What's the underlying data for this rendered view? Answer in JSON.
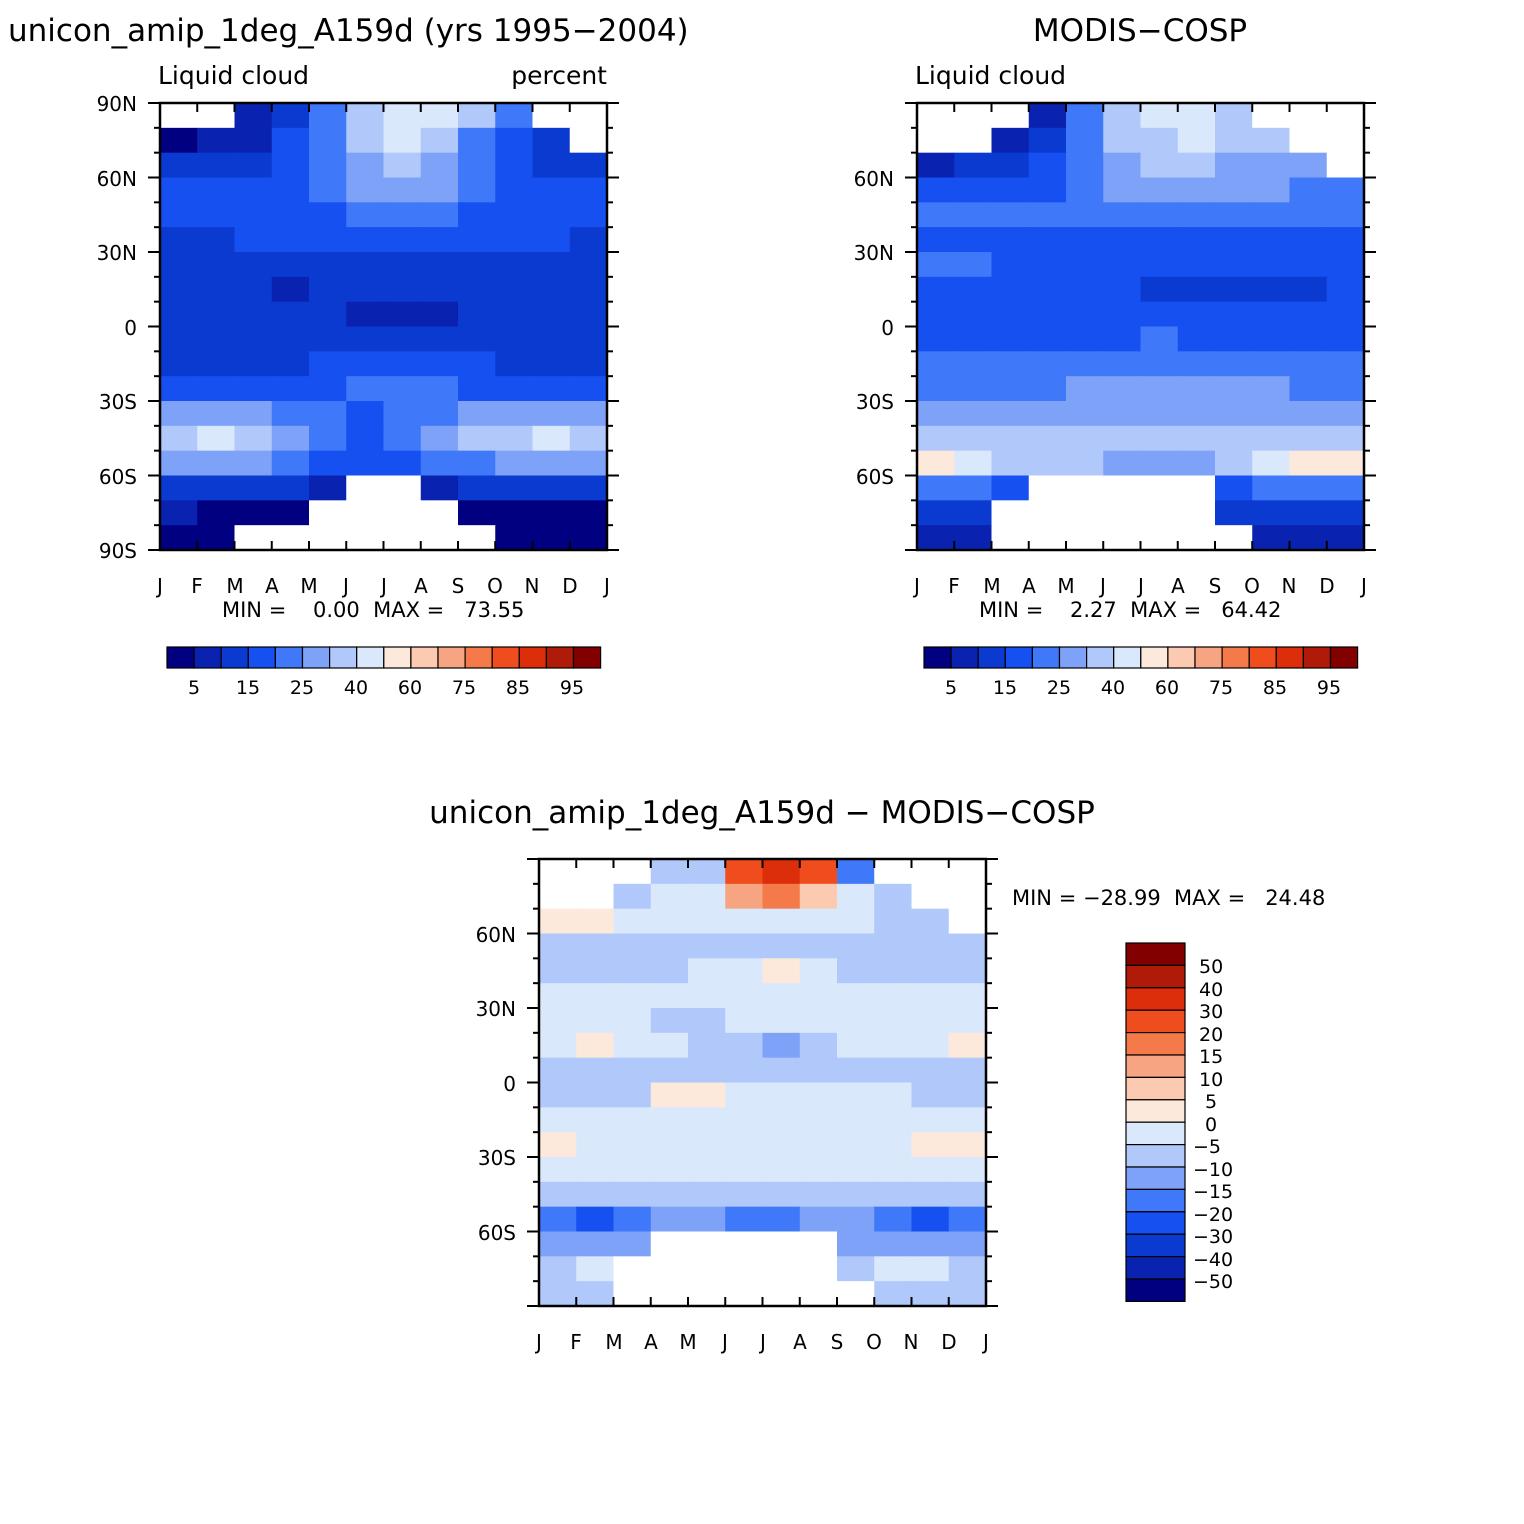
{
  "figure": {
    "palette": [
      "#000080",
      "#0a22b0",
      "#0a3ad0",
      "#1650f0",
      "#3f78f8",
      "#7ea2f8",
      "#b0c8fa",
      "#dae8fc",
      "#fde8dc",
      "#fccab0",
      "#f7a482",
      "#f57a4a",
      "#f04d1e",
      "#dc2e0a",
      "#b01a08",
      "#820000"
    ],
    "months": [
      "J",
      "F",
      "M",
      "A",
      "M",
      "J",
      "J",
      "A",
      "S",
      "O",
      "N",
      "D",
      "J"
    ],
    "lat_ticks": [
      "90N",
      "60N",
      "30N",
      "0",
      "30S",
      "60S",
      "90S"
    ],
    "seasonal_lat_ticks": [
      "60N",
      "30N",
      "0",
      "30S",
      "60S"
    ],
    "top_colorbar_labels": [
      "5",
      "15",
      "25",
      "40",
      "60",
      "75",
      "85",
      "95"
    ],
    "diff_colorbar_labels": [
      "50",
      "40",
      "30",
      "20",
      "15",
      "10",
      "5",
      "0",
      "−5",
      "−10",
      "−15",
      "−20",
      "−30",
      "−40",
      "−50"
    ]
  },
  "chart_data": [
    {
      "type": "heatmap",
      "title": "unicon_amip_1deg_A159d (yrs 1995−2004)",
      "subtitle_left": "Liquid cloud",
      "subtitle_right": "percent",
      "stats": "MIN =    0.00  MAX =   73.55",
      "min": 0.0,
      "max": 73.55,
      "x": [
        "J",
        "F",
        "M",
        "A",
        "M",
        "J",
        "J",
        "A",
        "S",
        "O",
        "N",
        "D"
      ],
      "y_latitude": [
        85,
        75,
        65,
        55,
        45,
        35,
        25,
        15,
        5,
        -5,
        -15,
        -25,
        -35,
        -45,
        -55,
        -65,
        -75,
        -85
      ],
      "values_level_index": [
        [
          -1,
          -1,
          1,
          2,
          4,
          6,
          7,
          7,
          6,
          4,
          -1,
          -1
        ],
        [
          0,
          1,
          1,
          3,
          4,
          6,
          7,
          6,
          4,
          3,
          2,
          -1
        ],
        [
          2,
          2,
          2,
          3,
          4,
          5,
          6,
          5,
          4,
          3,
          2,
          2
        ],
        [
          3,
          3,
          3,
          3,
          4,
          5,
          5,
          5,
          4,
          3,
          3,
          3
        ],
        [
          3,
          3,
          3,
          3,
          3,
          4,
          4,
          4,
          3,
          3,
          3,
          3
        ],
        [
          2,
          2,
          3,
          3,
          3,
          3,
          3,
          3,
          3,
          3,
          3,
          2
        ],
        [
          2,
          2,
          2,
          2,
          2,
          2,
          2,
          2,
          2,
          2,
          2,
          2
        ],
        [
          2,
          2,
          2,
          1,
          2,
          2,
          2,
          2,
          2,
          2,
          2,
          2
        ],
        [
          2,
          2,
          2,
          2,
          2,
          1,
          1,
          1,
          2,
          2,
          2,
          2
        ],
        [
          2,
          2,
          2,
          2,
          2,
          2,
          2,
          2,
          2,
          2,
          2,
          2
        ],
        [
          2,
          2,
          2,
          2,
          3,
          3,
          3,
          3,
          3,
          2,
          2,
          2
        ],
        [
          3,
          3,
          3,
          3,
          3,
          4,
          4,
          4,
          3,
          3,
          3,
          3
        ],
        [
          5,
          5,
          5,
          4,
          4,
          3,
          4,
          4,
          5,
          5,
          5,
          5
        ],
        [
          6,
          7,
          6,
          5,
          4,
          3,
          4,
          5,
          6,
          6,
          7,
          6
        ],
        [
          5,
          5,
          5,
          4,
          3,
          3,
          3,
          4,
          4,
          5,
          5,
          5
        ],
        [
          2,
          2,
          2,
          2,
          1,
          -1,
          -1,
          1,
          2,
          2,
          2,
          2
        ],
        [
          1,
          0,
          0,
          0,
          -1,
          -1,
          -1,
          -1,
          0,
          0,
          0,
          0
        ],
        [
          0,
          0,
          -1,
          -1,
          -1,
          -1,
          -1,
          -1,
          -1,
          0,
          0,
          0
        ]
      ]
    },
    {
      "type": "heatmap",
      "title": "MODIS−COSP",
      "subtitle_left": "Liquid cloud",
      "stats": "MIN =    2.27  MAX =   64.42",
      "min": 2.27,
      "max": 64.42,
      "x": [
        "J",
        "F",
        "M",
        "A",
        "M",
        "J",
        "J",
        "A",
        "S",
        "O",
        "N",
        "D"
      ],
      "y_latitude": [
        85,
        75,
        65,
        55,
        45,
        35,
        25,
        15,
        5,
        -5,
        -15,
        -25,
        -35,
        -45,
        -55,
        -65,
        -75,
        -85
      ],
      "values_level_index": [
        [
          -1,
          -1,
          -1,
          1,
          4,
          6,
          7,
          7,
          6,
          -1,
          -1,
          -1
        ],
        [
          -1,
          -1,
          1,
          2,
          4,
          6,
          6,
          7,
          6,
          6,
          -1,
          -1
        ],
        [
          1,
          2,
          2,
          3,
          4,
          5,
          6,
          6,
          5,
          5,
          5,
          -1
        ],
        [
          3,
          3,
          3,
          3,
          4,
          5,
          5,
          5,
          5,
          5,
          4,
          4
        ],
        [
          4,
          4,
          4,
          4,
          4,
          4,
          4,
          4,
          4,
          4,
          4,
          4
        ],
        [
          3,
          3,
          3,
          3,
          3,
          3,
          3,
          3,
          3,
          3,
          3,
          3
        ],
        [
          4,
          4,
          3,
          3,
          3,
          3,
          3,
          3,
          3,
          3,
          3,
          3
        ],
        [
          3,
          3,
          3,
          3,
          3,
          3,
          2,
          2,
          2,
          2,
          2,
          3
        ],
        [
          3,
          3,
          3,
          3,
          3,
          3,
          3,
          3,
          3,
          3,
          3,
          3
        ],
        [
          3,
          3,
          3,
          3,
          3,
          3,
          4,
          3,
          3,
          3,
          3,
          3
        ],
        [
          4,
          4,
          4,
          4,
          4,
          4,
          4,
          4,
          4,
          4,
          4,
          4
        ],
        [
          4,
          4,
          4,
          4,
          5,
          5,
          5,
          5,
          5,
          5,
          4,
          4
        ],
        [
          5,
          5,
          5,
          5,
          5,
          5,
          5,
          5,
          5,
          5,
          5,
          5
        ],
        [
          6,
          6,
          6,
          6,
          6,
          6,
          6,
          6,
          6,
          6,
          6,
          6
        ],
        [
          8,
          7,
          6,
          6,
          6,
          5,
          5,
          5,
          6,
          7,
          8,
          8
        ],
        [
          4,
          4,
          3,
          -1,
          -1,
          -1,
          -1,
          -1,
          3,
          4,
          4,
          4
        ],
        [
          2,
          2,
          -1,
          -1,
          -1,
          -1,
          -1,
          -1,
          2,
          2,
          2,
          2
        ],
        [
          1,
          1,
          -1,
          -1,
          -1,
          -1,
          -1,
          -1,
          -1,
          1,
          1,
          1
        ]
      ]
    },
    {
      "type": "heatmap",
      "title": "unicon_amip_1deg_A159d − MODIS−COSP",
      "stats": "MIN = −28.99  MAX =   24.48",
      "min": -28.99,
      "max": 24.48,
      "x": [
        "J",
        "F",
        "M",
        "A",
        "M",
        "J",
        "J",
        "A",
        "S",
        "O",
        "N",
        "D"
      ],
      "y_latitude": [
        85,
        75,
        65,
        55,
        45,
        35,
        25,
        15,
        5,
        -5,
        -15,
        -25,
        -35,
        -45,
        -55,
        -65,
        -75,
        -85
      ],
      "values_level_index": [
        [
          -1,
          -1,
          -1,
          6,
          6,
          12,
          13,
          12,
          4,
          -1,
          -1,
          -1
        ],
        [
          -1,
          -1,
          6,
          7,
          7,
          10,
          11,
          9,
          7,
          6,
          -1,
          -1
        ],
        [
          8,
          8,
          7,
          7,
          7,
          7,
          7,
          7,
          7,
          6,
          6,
          -1
        ],
        [
          6,
          6,
          6,
          6,
          6,
          6,
          6,
          6,
          6,
          6,
          6,
          6
        ],
        [
          6,
          6,
          6,
          6,
          7,
          7,
          8,
          7,
          6,
          6,
          6,
          6
        ],
        [
          7,
          7,
          7,
          7,
          7,
          7,
          7,
          7,
          7,
          7,
          7,
          7
        ],
        [
          7,
          7,
          7,
          6,
          6,
          7,
          7,
          7,
          7,
          7,
          7,
          7
        ],
        [
          7,
          8,
          7,
          7,
          6,
          6,
          5,
          6,
          7,
          7,
          7,
          8
        ],
        [
          6,
          6,
          6,
          6,
          6,
          6,
          6,
          6,
          6,
          6,
          6,
          6
        ],
        [
          6,
          6,
          6,
          8,
          8,
          7,
          7,
          7,
          7,
          7,
          6,
          6
        ],
        [
          7,
          7,
          7,
          7,
          7,
          7,
          7,
          7,
          7,
          7,
          7,
          7
        ],
        [
          8,
          7,
          7,
          7,
          7,
          7,
          7,
          7,
          7,
          7,
          8,
          8
        ],
        [
          7,
          7,
          7,
          7,
          7,
          7,
          7,
          7,
          7,
          7,
          7,
          7
        ],
        [
          6,
          6,
          6,
          6,
          6,
          6,
          6,
          6,
          6,
          6,
          6,
          6
        ],
        [
          4,
          3,
          4,
          5,
          5,
          4,
          4,
          5,
          5,
          4,
          3,
          4
        ],
        [
          5,
          5,
          5,
          -1,
          -1,
          -1,
          -1,
          -1,
          5,
          5,
          5,
          5
        ],
        [
          6,
          7,
          -1,
          -1,
          -1,
          -1,
          -1,
          -1,
          6,
          7,
          7,
          6
        ],
        [
          6,
          6,
          -1,
          -1,
          -1,
          -1,
          -1,
          -1,
          -1,
          6,
          6,
          6
        ]
      ]
    }
  ]
}
